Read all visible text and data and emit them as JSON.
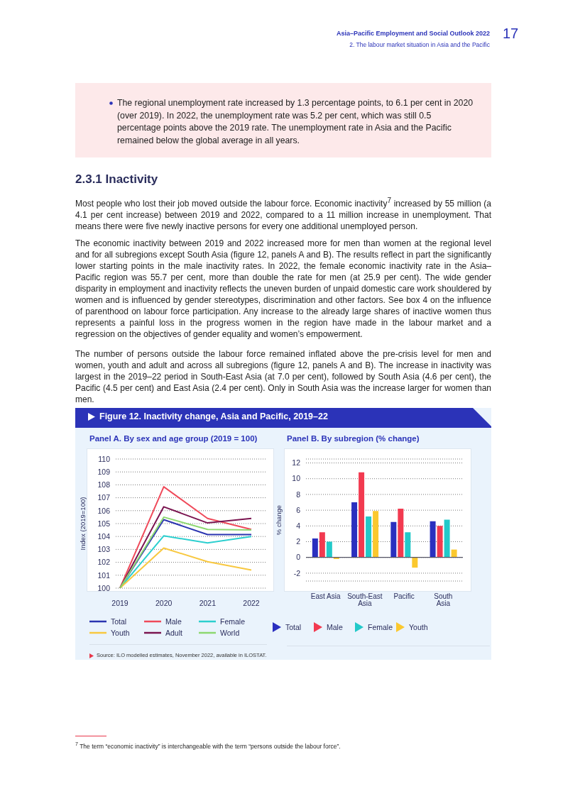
{
  "chart_data": [
    {
      "type": "line",
      "title": "Panel A. By sex and age group (2019 = 100)",
      "ylabel": "Index (2019=100)",
      "categories": [
        "2019",
        "2020",
        "2021",
        "2022"
      ],
      "series": [
        {
          "name": "Total",
          "color": "#2b35b0",
          "values": [
            100,
            105.3,
            104.15,
            104.15
          ]
        },
        {
          "name": "Male",
          "color": "#ef4a5a",
          "values": [
            100,
            107.85,
            105.4,
            104.55
          ]
        },
        {
          "name": "Female",
          "color": "#2ccfcf",
          "values": [
            100,
            104.05,
            103.5,
            104.0
          ]
        },
        {
          "name": "Youth",
          "color": "#f8c840",
          "values": [
            100,
            103.1,
            102.05,
            101.4
          ]
        },
        {
          "name": "Adult",
          "color": "#7a1550",
          "values": [
            100,
            106.3,
            105.05,
            105.4
          ]
        },
        {
          "name": "World",
          "color": "#8dd870",
          "values": [
            100,
            105.5,
            104.55,
            104.5
          ]
        }
      ],
      "ylim": [
        100,
        110
      ],
      "yticks": [
        100,
        101,
        102,
        103,
        104,
        105,
        106,
        107,
        108,
        109,
        110
      ],
      "grid": "y",
      "legend": "bottom",
      "marker": "none",
      "line_style": "solid",
      "annotations": [
        "Asia–Pacific Employment and Social Outlook 2022",
        "2. The labour market situation in Asia and the Pacific",
        "17",
        "The regional unemployment rate increased by 1.3 percentage points, to 6.1 per cent in 2020 (over 2019). In 2022, the unemployment rate was 5.2 per cent, which was still 0.5 percentage points above the 2019 rate. The unemployment rate in Asia and the Pacific remained below the global average in all years.",
        "2.3.1  Inactivity",
        "Most people who lost their job moved outside the labour force. Economic inactivity$^{7}$ increased by 55 million (a 4.1 per cent increase) between 2019 and 2022, compared to a 11 million increase in unemployment. That means there were five newly inactive persons for every one additional unemployed person.",
        "The economic inactivity between 2019 and 2022 increased more for men than women at the regional level and for all subregions except South Asia (figure 12, panels A and B). The results reflect in part the significantly lower starting points in the male inactivity rates. In 2022, the female economic inactivity rate in the Asia–Pacific region was 55.7 per cent, more than double the rate for men (at 25.9 per cent). The wide gender disparity in employment and inactivity reflects the uneven burden of unpaid domestic care work shouldered by women and is influenced by gender stereotypes, discrimination and other factors. See box 4 on the influence of parenthood on labour force participation. Any increase to the already large shares of inactive women thus represents a painful loss in the progress women in the region have made in the labour market and a regression on the objectives of gender equality and women’s empowerment.",
        "The number of persons outside the labour force remained inflated above the pre-crisis level for men and women, youth and adult and across all subregions (figure 12, panels A and B). The increase in inactivity was largest in the 2019–22 period in South-East Asia (at 7.0 per cent), followed by South Asia (4.6 per cent), the Pacific (4.5 per cent) and East Asia (2.4 per cent). Only in South Asia was the increase larger for women than men.",
        "Figure 12. Inactivity change, Asia and Pacific, 2019–22",
        "Source: ILO modelled estimates, November 2022, available in ILOSTAT.",
        "$^{7}$ The term “economic inactivity” is interchangeable with the term “persons outside the labour force”."
      ]
    },
    {
      "type": "bar",
      "title": "Panel B. By subregion (% change)",
      "ylabel": "% change",
      "categories": [
        "East Asia",
        "South-East Asia",
        "Pacific",
        "South Asia"
      ],
      "series": [
        {
          "name": "Total",
          "color": "#2a2fbf",
          "values": [
            2.4,
            7.0,
            4.5,
            4.6
          ]
        },
        {
          "name": "Male",
          "color": "#f23a50",
          "values": [
            3.2,
            10.8,
            6.2,
            4.0
          ]
        },
        {
          "name": "Female",
          "color": "#22c9c9",
          "values": [
            2.0,
            5.2,
            3.2,
            4.8
          ]
        },
        {
          "name": "Youth",
          "color": "#fbc82e",
          "values": [
            -0.2,
            5.9,
            -1.3,
            1.0
          ]
        }
      ],
      "ylim": [
        -3,
        12.5
      ],
      "yticks": [
        -2,
        0,
        2,
        4,
        6,
        8,
        10,
        12
      ],
      "grid": "y",
      "legend": "bottom",
      "ref_lines": [
        {
          "axis": "y",
          "value": 0,
          "color": "#555566"
        }
      ]
    }
  ]
}
